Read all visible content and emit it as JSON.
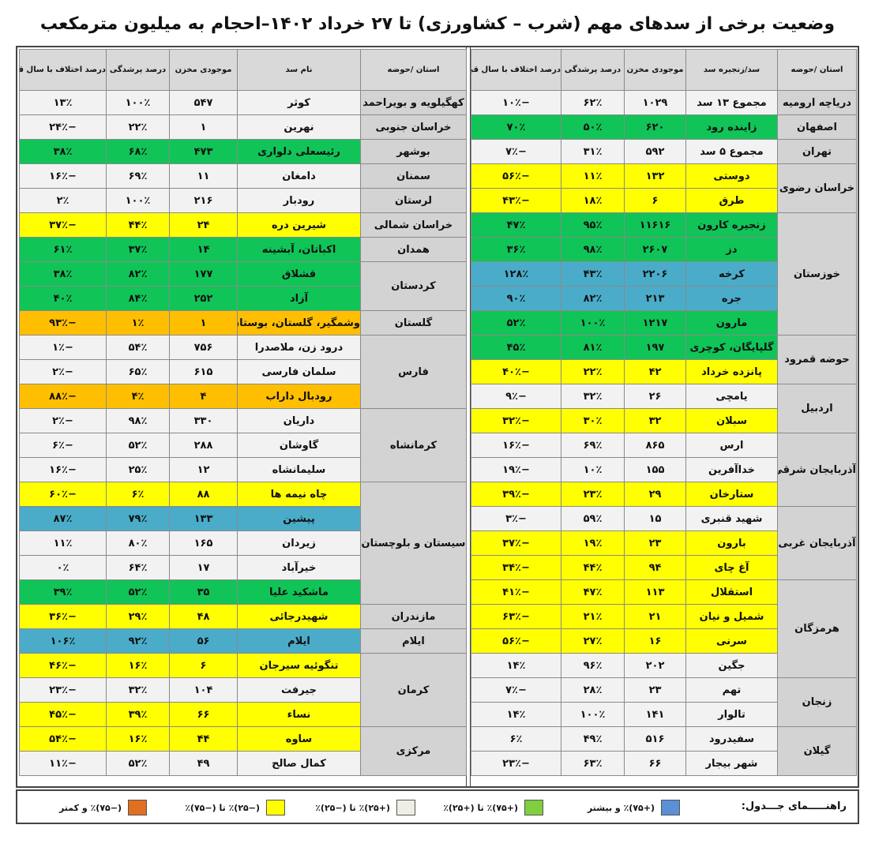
{
  "title": "وضعیت برخی از سدهای مهم (شرب – کشاورزی) تا ۲۷ خرداد ۱۴۰۲–احجام به میلیون مترمکعب",
  "right_table": {
    "headers": [
      "استان /حوضه",
      "سد/زنجیره سد",
      "موجودی مخزن",
      "درصد پرشدگی",
      "درصد اختلاف با سال قبل"
    ],
    "rows": [
      {
        "p": "دریاچه ارومیه",
        "s": "مجموع ۱۳ سد",
        "v": "۱۰۲۹",
        "f": "۶۲٪",
        "d": "−۱۰٪",
        "c": "white",
        "r": 1
      },
      {
        "p": "اصفهان",
        "s": "زاینده رود",
        "v": "۶۲۰",
        "f": "۵۰٪",
        "d": "۷۰٪",
        "c": "green",
        "r": 1
      },
      {
        "p": "تهران",
        "s": "مجموع ۵ سد",
        "v": "۵۹۲",
        "f": "۳۱٪",
        "d": "−۷٪",
        "c": "white",
        "r": 1
      },
      {
        "p": "خراسان رضوی",
        "s": "دوستی",
        "v": "۱۳۲",
        "f": "۱۱٪",
        "d": "−۵۶٪",
        "c": "yellow",
        "r": 2
      },
      {
        "s": "طرق",
        "v": "۶",
        "f": "۱۸٪",
        "d": "−۴۳٪",
        "c": "yellow"
      },
      {
        "p": "خوزستان",
        "s": "زنجیره کارون",
        "v": "۱۱۶۱۶",
        "f": "۹۵٪",
        "d": "۴۷٪",
        "c": "green",
        "r": 5
      },
      {
        "s": "دز",
        "v": "۲۶۰۷",
        "f": "۹۸٪",
        "d": "۳۶٪",
        "c": "green"
      },
      {
        "s": "کرخه",
        "v": "۲۲۰۶",
        "f": "۴۳٪",
        "d": "۱۲۸٪",
        "c": "blue"
      },
      {
        "s": "جره",
        "v": "۲۱۳",
        "f": "۸۲٪",
        "d": "۹۰٪",
        "c": "blue"
      },
      {
        "s": "مارون",
        "v": "۱۲۱۷",
        "f": "۱۰۰٪",
        "d": "۵۲٪",
        "c": "green"
      },
      {
        "p": "حوضه قمرود",
        "s": "گلپایگان، کوچری",
        "v": "۱۹۷",
        "f": "۸۱٪",
        "d": "۴۵٪",
        "c": "green",
        "r": 2
      },
      {
        "s": "پانزده خرداد",
        "v": "۴۲",
        "f": "۲۲٪",
        "d": "−۴۰٪",
        "c": "yellow"
      },
      {
        "p": "اردبیل",
        "s": "یامچی",
        "v": "۲۶",
        "f": "۳۲٪",
        "d": "−۹٪",
        "c": "white",
        "r": 2
      },
      {
        "s": "سبلان",
        "v": "۳۲",
        "f": "۳۰٪",
        "d": "−۳۲٪",
        "c": "yellow"
      },
      {
        "p": "آذربایجان شرقی",
        "s": "ارس",
        "v": "۸۶۵",
        "f": "۶۹٪",
        "d": "−۱۶٪",
        "c": "white",
        "r": 3
      },
      {
        "s": "خداآفرین",
        "v": "۱۵۵",
        "f": "۱۰٪",
        "d": "−۱۹٪",
        "c": "white"
      },
      {
        "s": "ستارخان",
        "v": "۲۹",
        "f": "۲۳٪",
        "d": "−۳۹٪",
        "c": "yellow"
      },
      {
        "p": "آذربایجان غربی",
        "s": "شهید قنبری",
        "v": "۱۵",
        "f": "۵۹٪",
        "d": "−۳٪",
        "c": "white",
        "r": 3
      },
      {
        "s": "بارون",
        "v": "۲۳",
        "f": "۱۹٪",
        "d": "−۳۷٪",
        "c": "yellow"
      },
      {
        "s": "آغ چای",
        "v": "۹۴",
        "f": "۴۴٪",
        "d": "−۳۴٪",
        "c": "yellow"
      },
      {
        "p": "هرمزگان",
        "s": "استقلال",
        "v": "۱۱۳",
        "f": "۴۷٪",
        "d": "−۴۱٪",
        "c": "yellow",
        "r": 4
      },
      {
        "s": "شمیل و نیان",
        "v": "۲۱",
        "f": "۲۱٪",
        "d": "−۶۳٪",
        "c": "yellow"
      },
      {
        "s": "سرنی",
        "v": "۱۶",
        "f": "۲۷٪",
        "d": "−۵۶٪",
        "c": "yellow"
      },
      {
        "s": "جگین",
        "v": "۲۰۲",
        "f": "۹۶٪",
        "d": "۱۴٪",
        "c": "white"
      },
      {
        "p": "زنجان",
        "s": "تهم",
        "v": "۲۳",
        "f": "۲۸٪",
        "d": "−۷٪",
        "c": "white",
        "r": 2
      },
      {
        "s": "تالوار",
        "v": "۱۴۱",
        "f": "۱۰۰٪",
        "d": "۱۴٪",
        "c": "white"
      },
      {
        "p": "گیلان",
        "s": "سفیدرود",
        "v": "۵۱۶",
        "f": "۴۹٪",
        "d": "۶٪",
        "c": "white",
        "r": 2
      },
      {
        "s": "شهر بیجار",
        "v": "۶۶",
        "f": "۶۳٪",
        "d": "−۲۳٪",
        "c": "white"
      }
    ]
  },
  "left_table": {
    "headers": [
      "استان /حوضه",
      "نام سد",
      "موجودی مخزن",
      "درصد پرشدگی",
      "درصد اختلاف با سال قبل"
    ],
    "rows": [
      {
        "p": "کهگیلویه و بویراحمد",
        "s": "کوثر",
        "v": "۵۴۷",
        "f": "۱۰۰٪",
        "d": "۱۳٪",
        "c": "white",
        "r": 1
      },
      {
        "p": "خراسان جنوبی",
        "s": "نهرین",
        "v": "۱",
        "f": "۲۲٪",
        "d": "−۲۴٪",
        "c": "white",
        "r": 1
      },
      {
        "p": "بوشهر",
        "s": "رئیسعلی دلواری",
        "v": "۴۷۳",
        "f": "۶۸٪",
        "d": "۳۸٪",
        "c": "green",
        "r": 1
      },
      {
        "p": "سمنان",
        "s": "دامغان",
        "v": "۱۱",
        "f": "۶۹٪",
        "d": "−۱۶٪",
        "c": "white",
        "r": 1
      },
      {
        "p": "لرستان",
        "s": "رودبار",
        "v": "۲۱۶",
        "f": "۱۰۰٪",
        "d": "۲٪",
        "c": "white",
        "r": 1
      },
      {
        "p": "خراسان شمالی",
        "s": "شیرین دره",
        "v": "۲۴",
        "f": "۴۴٪",
        "d": "−۳۷٪",
        "c": "yellow",
        "r": 1
      },
      {
        "p": "همدان",
        "s": "اکباتان، آبشینه",
        "v": "۱۴",
        "f": "۳۷٪",
        "d": "۶۱٪",
        "c": "green",
        "r": 1
      },
      {
        "p": "کردستان",
        "s": "قشلاق",
        "v": "۱۷۷",
        "f": "۸۲٪",
        "d": "۳۸٪",
        "c": "green",
        "r": 2
      },
      {
        "s": "آزاد",
        "v": "۲۵۲",
        "f": "۸۴٪",
        "d": "۴۰٪",
        "c": "green"
      },
      {
        "p": "گلستان",
        "s": "وشمگیر، گلستان، بوستان",
        "v": "۱",
        "f": "۱٪",
        "d": "−۹۳٪",
        "c": "orange",
        "r": 1
      },
      {
        "p": "فارس",
        "s": "درود زن، ملاصدرا",
        "v": "۷۵۶",
        "f": "۵۴٪",
        "d": "−۱٪",
        "c": "white",
        "r": 3
      },
      {
        "s": "سلمان فارسی",
        "v": "۶۱۵",
        "f": "۶۵٪",
        "d": "−۲٪",
        "c": "white"
      },
      {
        "s": "رودبال داراب",
        "v": "۴",
        "f": "۴٪",
        "d": "−۸۸٪",
        "c": "orange"
      },
      {
        "p": "کرمانشاه",
        "s": "داریان",
        "v": "۳۳۰",
        "f": "۹۸٪",
        "d": "−۲٪",
        "c": "white",
        "r": 3
      },
      {
        "s": "گاوشان",
        "v": "۲۸۸",
        "f": "۵۲٪",
        "d": "−۶٪",
        "c": "white"
      },
      {
        "s": "سلیمانشاه",
        "v": "۱۲",
        "f": "۲۵٪",
        "d": "−۱۶٪",
        "c": "white"
      },
      {
        "p": "سیستان و بلوچستان",
        "s": "چاه نیمه ها",
        "v": "۸۸",
        "f": "۶٪",
        "d": "−۶۰٪",
        "c": "yellow",
        "r": 5
      },
      {
        "s": "پیشین",
        "v": "۱۳۳",
        "f": "۷۹٪",
        "d": "۸۷٪",
        "c": "blue"
      },
      {
        "s": "زیردان",
        "v": "۱۶۵",
        "f": "۸۰٪",
        "d": "۱۱٪",
        "c": "white"
      },
      {
        "s": "خیرآباد",
        "v": "۱۷",
        "f": "۶۴٪",
        "d": "۰٪",
        "c": "white"
      },
      {
        "s": "ماشکید علیا",
        "v": "۳۵",
        "f": "۵۲٪",
        "d": "۳۹٪",
        "c": "green"
      },
      {
        "p": "مازندران",
        "s": "شهیدرجائی",
        "v": "۴۸",
        "f": "۲۹٪",
        "d": "−۳۶٪",
        "c": "yellow",
        "r": 1
      },
      {
        "p": "ایلام",
        "s": "ایلام",
        "v": "۵۶",
        "f": "۹۲٪",
        "d": "۱۰۶٪",
        "c": "blue",
        "r": 1
      },
      {
        "p": "کرمان",
        "s": "تنگوئیه سیرجان",
        "v": "۶",
        "f": "۱۶٪",
        "d": "−۴۶٪",
        "c": "yellow",
        "r": 3
      },
      {
        "s": "جیرفت",
        "v": "۱۰۴",
        "f": "۳۲٪",
        "d": "−۲۳٪",
        "c": "white"
      },
      {
        "s": "نساء",
        "v": "۶۶",
        "f": "۳۹٪",
        "d": "−۴۵٪",
        "c": "yellow"
      },
      {
        "p": "مرکزی",
        "s": "ساوه",
        "v": "۴۴",
        "f": "۱۶٪",
        "d": "−۵۴٪",
        "c": "yellow",
        "r": 2
      },
      {
        "s": "کمال صالح",
        "v": "۴۹",
        "f": "۵۲٪",
        "d": "−۱۱٪",
        "c": "white"
      }
    ]
  },
  "legend": {
    "title": "راهنـــــمای جـــدول:",
    "items": [
      {
        "label": "(+۷۵)٪ و بیشتر",
        "color": "#5b8fd6"
      },
      {
        "label": "(+۷۵)٪ تا (+۲۵)٪",
        "color": "#7fcf3f"
      },
      {
        "label": "(+۲۵)٪ تا (−۲۵)٪",
        "color": "#efeee6"
      },
      {
        "label": "(−۲۵)٪ تا (−۷۵)٪",
        "color": "#ffff00"
      },
      {
        "label": "(−۷۵)٪ و کمتر",
        "color": "#e07020"
      }
    ]
  }
}
